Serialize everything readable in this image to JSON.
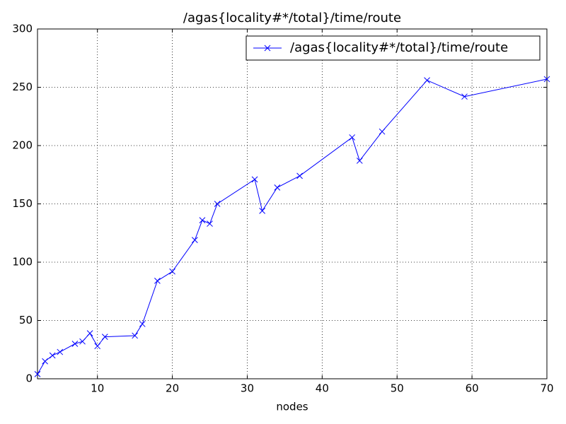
{
  "chart_data": {
    "type": "line",
    "title": "/agas{locality#*/total}/time/route",
    "x_label": "nodes",
    "x": [
      2,
      3,
      4,
      5,
      7,
      8,
      9,
      10,
      11,
      15,
      16,
      18,
      20,
      23,
      24,
      25,
      26,
      31,
      32,
      34,
      37,
      44,
      45,
      48,
      54,
      59,
      70
    ],
    "series": [
      {
        "name": "/agas{locality#*/total}/time/route",
        "color": "#0000ff",
        "values": [
          4,
          15,
          20,
          23,
          30,
          32,
          39,
          28,
          36,
          37,
          47,
          84,
          92,
          119,
          136,
          133,
          150,
          171,
          144,
          164,
          174,
          207,
          187,
          212,
          256,
          242,
          257
        ]
      }
    ],
    "xlim": [
      2,
      70
    ],
    "xticks": [
      10,
      20,
      30,
      40,
      50,
      60,
      70
    ],
    "ylim": [
      0,
      300
    ],
    "yticks": [
      0,
      50,
      100,
      150,
      200,
      250,
      300
    ],
    "grid": true,
    "legend": "upper-right"
  }
}
